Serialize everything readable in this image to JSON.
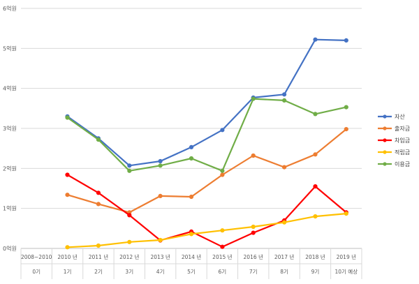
{
  "chart_data": {
    "type": "line",
    "title": "",
    "xlabel": "",
    "ylabel": "",
    "categories": [
      "2008~2010",
      "2010 년",
      "2011 년",
      "2012 년",
      "2013 년",
      "2014 년",
      "2015 년",
      "2016 년",
      "2017 년",
      "2018 년",
      "2019 년"
    ],
    "categories_line2": [
      "0기",
      "1기",
      "2기",
      "3기",
      "4기",
      "5기",
      "6기",
      "7기",
      "8기",
      "9기",
      "10기 예상"
    ],
    "y_ticks": [
      "0억원",
      "1억원",
      "2억원",
      "3억원",
      "4억원",
      "5억원",
      "6억원"
    ],
    "ylim": [
      0,
      6
    ],
    "grid": true,
    "legend_position": "right",
    "series": [
      {
        "name": "자산",
        "color": "#4472C4",
        "values": [
          null,
          3.3,
          2.75,
          2.07,
          2.18,
          2.53,
          2.96,
          3.77,
          3.85,
          5.22,
          5.2
        ]
      },
      {
        "name": "출자금",
        "color": "#ED7D31",
        "values": [
          null,
          1.34,
          1.11,
          0.9,
          1.31,
          1.29,
          1.84,
          2.32,
          2.03,
          2.35,
          2.98
        ]
      },
      {
        "name": "차입금",
        "color": "#FF0000",
        "values": [
          null,
          1.84,
          1.39,
          0.83,
          0.2,
          0.42,
          0.04,
          0.39,
          0.7,
          1.55,
          0.9
        ]
      },
      {
        "name": "적립금",
        "color": "#FFC000",
        "values": [
          null,
          0.03,
          0.07,
          0.16,
          0.21,
          0.36,
          0.45,
          0.54,
          0.65,
          0.8,
          0.87
        ]
      },
      {
        "name": "이용금",
        "color": "#70AD47",
        "values": [
          null,
          3.27,
          2.72,
          1.94,
          2.07,
          2.25,
          1.94,
          3.74,
          3.7,
          3.36,
          3.53
        ]
      }
    ]
  }
}
